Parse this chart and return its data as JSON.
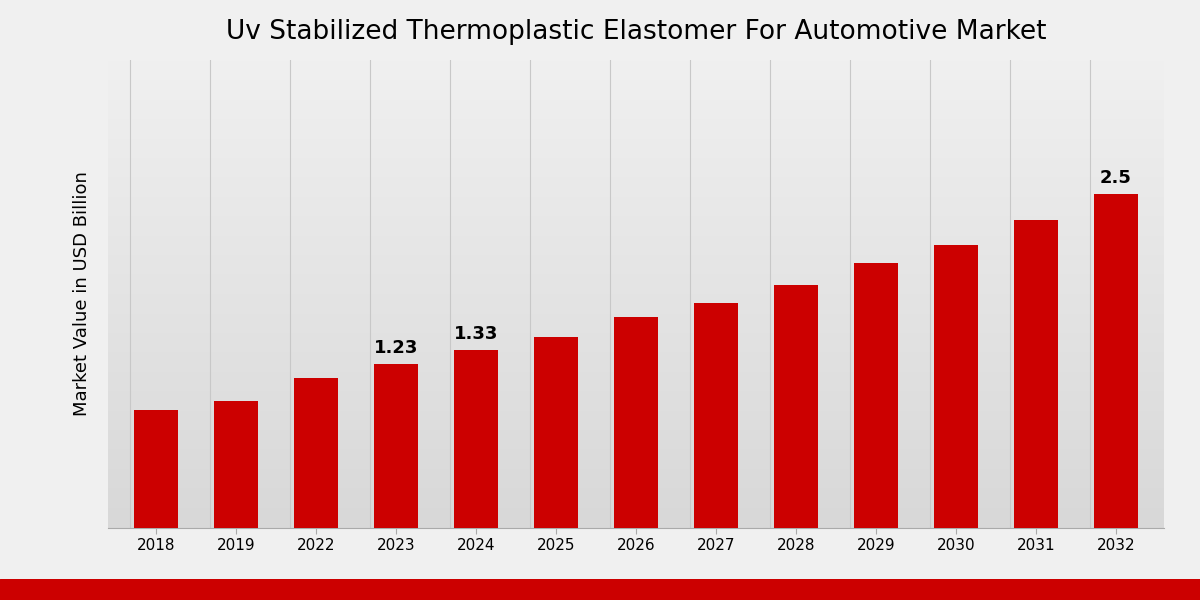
{
  "title": "Uv Stabilized Thermoplastic Elastomer For Automotive Market",
  "ylabel": "Market Value in USD Billion",
  "categories": [
    "2018",
    "2019",
    "2022",
    "2023",
    "2024",
    "2025",
    "2026",
    "2027",
    "2028",
    "2029",
    "2030",
    "2031",
    "2032"
  ],
  "values": [
    0.88,
    0.95,
    1.12,
    1.23,
    1.33,
    1.43,
    1.58,
    1.68,
    1.82,
    1.98,
    2.12,
    2.3,
    2.5
  ],
  "bar_color": "#CC0000",
  "background_color_top": "#F0F0F0",
  "background_color_bottom": "#D8D8D8",
  "labeled_bars": {
    "2023": "1.23",
    "2024": "1.33",
    "2032": "2.5"
  },
  "ylim": [
    0,
    3.5
  ],
  "title_fontsize": 19,
  "label_fontsize": 13,
  "tick_fontsize": 11,
  "ylabel_fontsize": 13,
  "bar_width": 0.55,
  "bottom_band_color": "#CC0000",
  "grid_color": "#C8C8C8",
  "spine_color": "#AAAAAA"
}
